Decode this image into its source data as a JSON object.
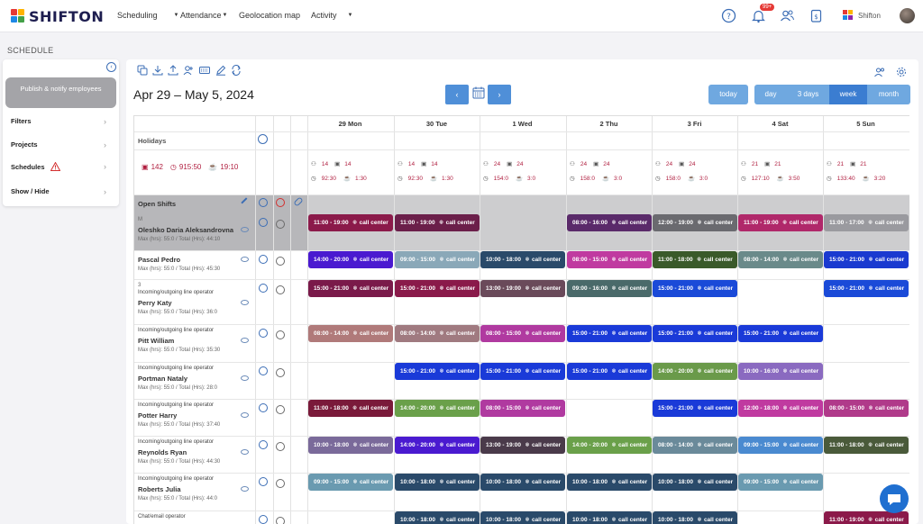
{
  "app": {
    "brand": "SHIFTON",
    "notifications_badge": "99+",
    "user_name": "Shifton"
  },
  "nav": {
    "scheduling": "Scheduling",
    "attendance": "Attendance",
    "geolocation": "Geolocation map",
    "activity": "Activity"
  },
  "page": {
    "section_title": "SCHEDULE",
    "date_range": "Apr 29 – May 5, 2024"
  },
  "sidebar": {
    "publish_label": "Publish & notify employees",
    "items": [
      {
        "label": "Filters"
      },
      {
        "label": "Projects"
      },
      {
        "label": "Schedules"
      },
      {
        "label": "Show / Hide"
      }
    ]
  },
  "toolbar": {
    "today": "today",
    "prev": "‹",
    "next": "›",
    "views": [
      "day",
      "3 days",
      "week",
      "month"
    ],
    "active_view": "week"
  },
  "days": [
    "29 Mon",
    "30 Tue",
    "1 Wed",
    "2 Thu",
    "3 Fri",
    "4 Sat",
    "5 Sun"
  ],
  "holidays_label": "Holidays",
  "totals": {
    "people": "142",
    "hours": "915:50",
    "time": "19:10"
  },
  "day_stats": [
    {
      "people": "14",
      "shifts": "14",
      "hours": "92:30",
      "breaks": "1:30"
    },
    {
      "people": "14",
      "shifts": "14",
      "hours": "92:30",
      "breaks": "1:30"
    },
    {
      "people": "24",
      "shifts": "24",
      "hours": "154:0",
      "breaks": "3:0"
    },
    {
      "people": "24",
      "shifts": "24",
      "hours": "158:0",
      "breaks": "3:0"
    },
    {
      "people": "24",
      "shifts": "24",
      "hours": "158:0",
      "breaks": "3:0"
    },
    {
      "people": "21",
      "shifts": "21",
      "hours": "127:10",
      "breaks": "3:50"
    },
    {
      "people": "21",
      "shifts": "21",
      "hours": "133:40",
      "breaks": "3:20"
    }
  ],
  "open_shifts_label": "Open Shifts",
  "location": "call center",
  "colors": {
    "primary": "#4f8fd8",
    "active": "#3b7dd1",
    "brand": "#1d1d4f",
    "accent_red": "#b01e3f"
  },
  "employees": [
    {
      "prefix": "M",
      "name": "Oleshko Daria Aleksandrovna",
      "stats": "Max (hrs): 55:0 / Total (Hrs): 44:10",
      "shifts": [
        [
          "11:00 - 19:00",
          "#8b1a4a"
        ],
        [
          "11:00 - 19:00",
          "#6b1f4a"
        ],
        null,
        [
          "08:00 - 16:00",
          "#5a2a6a"
        ],
        [
          "12:00 - 19:00",
          "#6a6a6f"
        ],
        [
          "11:00 - 19:00",
          "#b0286a"
        ],
        [
          "11:00 - 17:00",
          "#9a9a9f"
        ]
      ]
    },
    {
      "prefix": "",
      "name": "Pascal Pedro",
      "stats": "Max (hrs): 55:0 / Total (Hrs): 45:30",
      "shifts": [
        [
          "14:00 - 20:00",
          "#4a1ad0"
        ],
        [
          "09:00 - 15:00",
          "#8aa8b8"
        ],
        [
          "10:00 - 18:00",
          "#2a4a6a"
        ],
        [
          "08:00 - 15:00",
          "#c03aa0"
        ],
        [
          "11:00 - 18:00",
          "#3a5a2a"
        ],
        [
          "08:00 - 14:00",
          "#6a8a8a"
        ],
        [
          "15:00 - 21:00",
          "#1a3ad0"
        ]
      ]
    },
    {
      "prefix": "3",
      "sub": "Incoming/outgoing line operator",
      "name": "Perry Katy",
      "stats": "Max (hrs): 55:0 / Total (Hrs): 36:0",
      "shifts": [
        [
          "15:00 - 21:00",
          "#7a1a4a"
        ],
        [
          "15:00 - 21:00",
          "#8a1a4a"
        ],
        [
          "13:00 - 19:00",
          "#6a4a5a"
        ],
        [
          "09:00 - 16:00",
          "#4a6a6a"
        ],
        [
          "15:00 - 21:00",
          "#1a4ad8"
        ],
        null,
        [
          "15:00 - 21:00",
          "#1a4ad8"
        ]
      ]
    },
    {
      "prefix": "",
      "sub": "Incoming/outgoing line operator",
      "name": "Pitt William",
      "stats": "Max (hrs): 55:0 / Total (Hrs): 35:30",
      "shifts": [
        [
          "08:00 - 14:00",
          "#b07a7a"
        ],
        [
          "08:00 - 14:00",
          "#a07a80"
        ],
        [
          "08:00 - 15:00",
          "#b03aa0"
        ],
        [
          "15:00 - 21:00",
          "#1a3ad8"
        ],
        [
          "15:00 - 21:00",
          "#1a3ad8"
        ],
        [
          "15:00 - 21:00",
          "#1a3ad8"
        ],
        null
      ]
    },
    {
      "prefix": "",
      "sub": "Incoming/outgoing line operator",
      "name": "Portman Nataly",
      "stats": "Max (hrs): 55:0 / Total (Hrs): 28:0",
      "shifts": [
        null,
        [
          "15:00 - 21:00",
          "#1a3ad8"
        ],
        [
          "15:00 - 21:00",
          "#1a3ad8"
        ],
        [
          "15:00 - 21:00",
          "#1a3ad8"
        ],
        [
          "14:00 - 20:00",
          "#6a9a4a"
        ],
        [
          "10:00 - 16:00",
          "#8a6ac0"
        ],
        null
      ]
    },
    {
      "prefix": "",
      "sub": "Incoming/outgoing line operator",
      "name": "Potter Harry",
      "stats": "Max (hrs): 55:0 / Total (Hrs): 37:40",
      "shifts": [
        [
          "11:00 - 18:00",
          "#7a1a3a"
        ],
        [
          "14:00 - 20:00",
          "#6aa04a"
        ],
        [
          "08:00 - 15:00",
          "#b03aa0"
        ],
        null,
        [
          "15:00 - 21:00",
          "#1a3ad8"
        ],
        [
          "12:00 - 18:00",
          "#c03aa0"
        ],
        [
          "08:00 - 15:00",
          "#b03a8a"
        ]
      ]
    },
    {
      "prefix": "",
      "sub": "Incoming/outgoing line operator",
      "name": "Reynolds Ryan",
      "stats": "Max (hrs): 55:0 / Total (Hrs): 44:30",
      "shifts": [
        [
          "10:00 - 18:00",
          "#7a6a9a"
        ],
        [
          "14:00 - 20:00",
          "#4a1ad0"
        ],
        [
          "13:00 - 19:00",
          "#4a3a4a"
        ],
        [
          "14:00 - 20:00",
          "#6aa04a"
        ],
        [
          "08:00 - 14:00",
          "#6a8a9a"
        ],
        [
          "09:00 - 15:00",
          "#4a8ad0"
        ],
        [
          "11:00 - 18:00",
          "#4a5a3a"
        ]
      ]
    },
    {
      "prefix": "",
      "sub": "Incoming/outgoing line operator",
      "name": "Roberts Julia",
      "stats": "Max (hrs): 55:0 / Total (Hrs): 44:0",
      "shifts": [
        [
          "09:00 - 15:00",
          "#6a9ab0"
        ],
        [
          "10:00 - 18:00",
          "#2a4a6a"
        ],
        [
          "10:00 - 18:00",
          "#2a4a6a"
        ],
        [
          "10:00 - 18:00",
          "#2a4a6a"
        ],
        [
          "10:00 - 18:00",
          "#2a4a6a"
        ],
        [
          "09:00 - 15:00",
          "#6a9ab0"
        ],
        null
      ]
    },
    {
      "prefix": "",
      "sub": "Chat/email operator",
      "name": "",
      "stats": "",
      "shifts": [
        null,
        [
          "10:00 - 18:00",
          "#2a4a6a"
        ],
        [
          "10:00 - 18:00",
          "#2a4a6a"
        ],
        [
          "10:00 - 18:00",
          "#2a4a6a"
        ],
        [
          "10:00 - 18:00",
          "#2a4a6a"
        ],
        null,
        [
          "11:00 - 19:00",
          "#8b1a4a"
        ]
      ]
    }
  ]
}
